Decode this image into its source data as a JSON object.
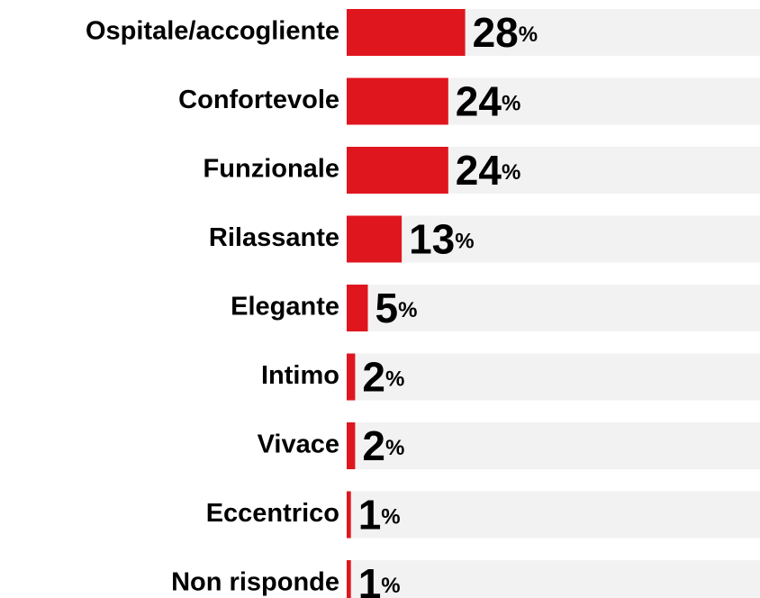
{
  "chart_data": {
    "type": "bar",
    "orientation": "horizontal",
    "categories": [
      "Ospitale/accogliente",
      "Confortevole",
      "Funzionale",
      "Rilassante",
      "Elegante",
      "Intimo",
      "Vivace",
      "Eccentrico",
      "Non risponde"
    ],
    "values": [
      28,
      24,
      24,
      13,
      5,
      2,
      2,
      1,
      1
    ],
    "value_labels": [
      "28%",
      "24%",
      "24%",
      "13%",
      "5%",
      "2%",
      "2%",
      "1%",
      "1%"
    ],
    "color": "#e0161f"
  }
}
